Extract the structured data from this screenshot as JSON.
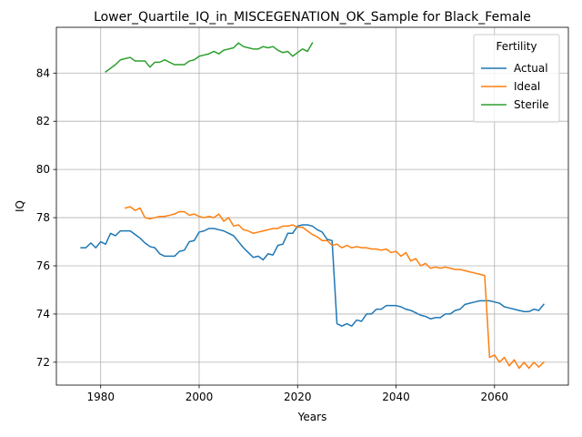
{
  "chart_data": {
    "type": "line",
    "title": "Lower_Quartile_IQ_in_MISCEGENATION_OK_Sample for Black_Female",
    "xlabel": "Years",
    "ylabel": "IQ",
    "xlim": [
      1971,
      2075
    ],
    "ylim": [
      71.05,
      85.9
    ],
    "xticks": [
      1980,
      2000,
      2020,
      2040,
      2060
    ],
    "yticks": [
      72,
      74,
      76,
      78,
      80,
      82,
      84
    ],
    "grid": true,
    "legend": {
      "title": "Fertility",
      "placement": "top-right"
    },
    "series": [
      {
        "name": "Actual",
        "color": "#1f77b4",
        "x": [
          1976,
          1977,
          1978,
          1979,
          1980,
          1981,
          1982,
          1983,
          1984,
          1985,
          1986,
          1987,
          1988,
          1989,
          1990,
          1991,
          1992,
          1993,
          1994,
          1995,
          1996,
          1997,
          1998,
          1999,
          2000,
          2001,
          2002,
          2003,
          2004,
          2005,
          2006,
          2007,
          2008,
          2009,
          2010,
          2011,
          2012,
          2013,
          2014,
          2015,
          2016,
          2017,
          2018,
          2019,
          2020,
          2021,
          2022,
          2023,
          2024,
          2025,
          2026,
          2027,
          2028,
          2029,
          2030,
          2031,
          2032,
          2033,
          2034,
          2035,
          2036,
          2037,
          2038,
          2039,
          2040,
          2041,
          2042,
          2043,
          2044,
          2045,
          2046,
          2047,
          2048,
          2049,
          2050,
          2051,
          2052,
          2053,
          2054,
          2055,
          2056,
          2057,
          2058,
          2059,
          2060,
          2061,
          2062,
          2063,
          2064,
          2065,
          2066,
          2067,
          2068,
          2069,
          2070
        ],
        "y": [
          76.75,
          76.75,
          76.95,
          76.75,
          77.0,
          76.9,
          77.35,
          77.25,
          77.45,
          77.45,
          77.45,
          77.3,
          77.15,
          76.95,
          76.8,
          76.75,
          76.5,
          76.4,
          76.4,
          76.4,
          76.6,
          76.65,
          77.0,
          77.05,
          77.4,
          77.45,
          77.55,
          77.55,
          77.5,
          77.45,
          77.35,
          77.25,
          77.0,
          76.75,
          76.55,
          76.35,
          76.4,
          76.25,
          76.5,
          76.45,
          76.85,
          76.9,
          77.35,
          77.35,
          77.65,
          77.7,
          77.7,
          77.65,
          77.5,
          77.4,
          77.1,
          77.05,
          73.6,
          73.5,
          73.6,
          73.5,
          73.75,
          73.7,
          74.0,
          74.0,
          74.2,
          74.2,
          74.35,
          74.35,
          74.35,
          74.3,
          74.2,
          74.15,
          74.05,
          73.95,
          73.9,
          73.8,
          73.85,
          73.85,
          74.0,
          74.0,
          74.15,
          74.2,
          74.4,
          74.45,
          74.5,
          74.55,
          74.55,
          74.55,
          74.5,
          74.45,
          74.3,
          74.25,
          74.2,
          74.15,
          74.1,
          74.1,
          74.2,
          74.15,
          74.4
        ]
      },
      {
        "name": "Ideal",
        "color": "#ff7f0e",
        "x": [
          1985,
          1986,
          1987,
          1988,
          1989,
          1990,
          1991,
          1992,
          1993,
          1994,
          1995,
          1996,
          1997,
          1998,
          1999,
          2000,
          2001,
          2002,
          2003,
          2004,
          2005,
          2006,
          2007,
          2008,
          2009,
          2010,
          2011,
          2012,
          2013,
          2014,
          2015,
          2016,
          2017,
          2018,
          2019,
          2020,
          2021,
          2022,
          2023,
          2024,
          2025,
          2026,
          2027,
          2028,
          2029,
          2030,
          2031,
          2032,
          2033,
          2034,
          2035,
          2036,
          2037,
          2038,
          2039,
          2040,
          2041,
          2042,
          2043,
          2044,
          2045,
          2046,
          2047,
          2048,
          2049,
          2050,
          2051,
          2052,
          2053,
          2054,
          2055,
          2056,
          2057,
          2058,
          2059,
          2060,
          2061,
          2062,
          2063,
          2064,
          2065,
          2066,
          2067,
          2068,
          2069,
          2070
        ],
        "y": [
          78.4,
          78.45,
          78.3,
          78.4,
          78.0,
          77.95,
          78.0,
          78.05,
          78.05,
          78.1,
          78.15,
          78.25,
          78.25,
          78.1,
          78.15,
          78.05,
          78.0,
          78.05,
          78.0,
          78.15,
          77.85,
          78.0,
          77.65,
          77.7,
          77.5,
          77.45,
          77.35,
          77.4,
          77.45,
          77.5,
          77.55,
          77.55,
          77.65,
          77.65,
          77.7,
          77.6,
          77.6,
          77.45,
          77.3,
          77.2,
          77.05,
          77.05,
          76.85,
          76.9,
          76.75,
          76.85,
          76.75,
          76.8,
          76.75,
          76.75,
          76.7,
          76.7,
          76.65,
          76.7,
          76.55,
          76.6,
          76.4,
          76.55,
          76.2,
          76.3,
          76.0,
          76.1,
          75.9,
          75.95,
          75.9,
          75.95,
          75.9,
          75.85,
          75.85,
          75.8,
          75.75,
          75.7,
          75.65,
          75.6,
          72.2,
          72.3,
          72.0,
          72.2,
          71.85,
          72.1,
          71.75,
          72.0,
          71.75,
          72.0,
          71.8,
          72.0
        ]
      },
      {
        "name": "Sterile",
        "color": "#2ca02c",
        "x": [
          1981,
          1982,
          1983,
          1984,
          1985,
          1986,
          1987,
          1988,
          1989,
          1990,
          1991,
          1992,
          1993,
          1994,
          1995,
          1996,
          1997,
          1998,
          1999,
          2000,
          2001,
          2002,
          2003,
          2004,
          2005,
          2006,
          2007,
          2008,
          2009,
          2010,
          2011,
          2012,
          2013,
          2014,
          2015,
          2016,
          2017,
          2018,
          2019,
          2020,
          2021,
          2022,
          2023
        ],
        "y": [
          84.05,
          84.2,
          84.35,
          84.55,
          84.6,
          84.65,
          84.5,
          84.5,
          84.5,
          84.25,
          84.45,
          84.45,
          84.55,
          84.45,
          84.35,
          84.35,
          84.35,
          84.5,
          84.55,
          84.7,
          84.75,
          84.8,
          84.9,
          84.8,
          84.95,
          85.0,
          85.05,
          85.25,
          85.1,
          85.05,
          85.0,
          85.0,
          85.1,
          85.05,
          85.1,
          84.95,
          84.85,
          84.9,
          84.7,
          84.85,
          85.0,
          84.9,
          85.25
        ]
      }
    ]
  }
}
